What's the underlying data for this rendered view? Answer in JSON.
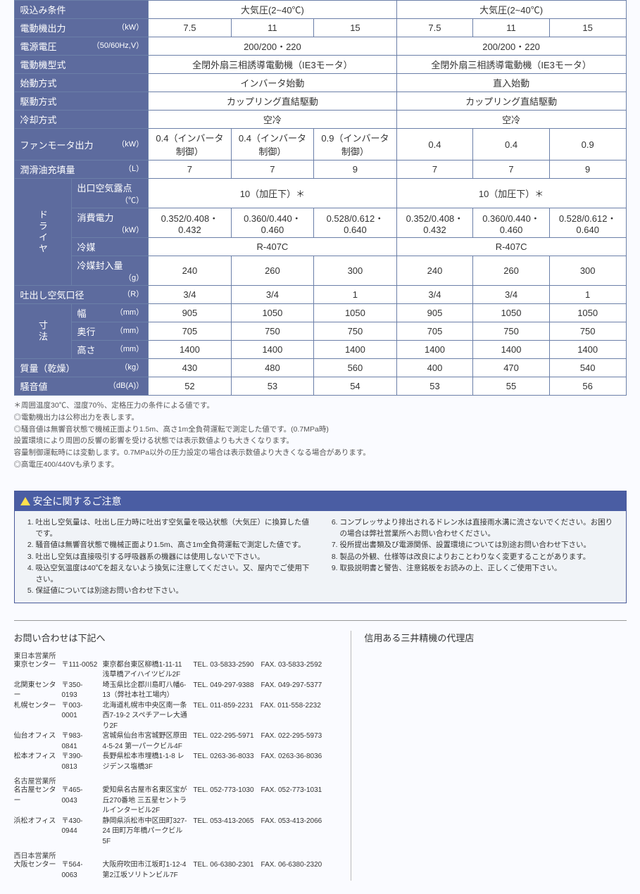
{
  "spec": [
    {
      "label": "吸込み条件",
      "unit": "",
      "cells": [
        "大気圧(2~40℃)",
        "",
        "",
        "大気圧(2~40℃)",
        "",
        ""
      ],
      "colspans": [
        3,
        0,
        0,
        3,
        0,
        0
      ]
    },
    {
      "label": "電動機出力",
      "unit": "（kW）",
      "cells": [
        "7.5",
        "11",
        "15",
        "7.5",
        "11",
        "15"
      ]
    },
    {
      "label": "電源電圧",
      "unit": "（50/60Hz,V）",
      "cells": [
        "200/200・220",
        "",
        "",
        "200/200・220",
        "",
        ""
      ],
      "colspans": [
        3,
        0,
        0,
        3,
        0,
        0
      ]
    },
    {
      "label": "電動機型式",
      "unit": "",
      "cells": [
        "全閉外扇三相誘導電動機（IE3モータ）",
        "",
        "",
        "全閉外扇三相誘導電動機（IE3モータ）",
        "",
        ""
      ],
      "colspans": [
        3,
        0,
        0,
        3,
        0,
        0
      ]
    },
    {
      "label": "始動方式",
      "unit": "",
      "cells": [
        "インバータ始動",
        "",
        "",
        "直入始動",
        "",
        ""
      ],
      "colspans": [
        3,
        0,
        0,
        3,
        0,
        0
      ]
    },
    {
      "label": "駆動方式",
      "unit": "",
      "cells": [
        "カップリング直結駆動",
        "",
        "",
        "カップリング直結駆動",
        "",
        ""
      ],
      "colspans": [
        3,
        0,
        0,
        3,
        0,
        0
      ]
    },
    {
      "label": "冷却方式",
      "unit": "",
      "cells": [
        "空冷",
        "",
        "",
        "空冷",
        "",
        ""
      ],
      "colspans": [
        3,
        0,
        0,
        3,
        0,
        0
      ]
    },
    {
      "label": "ファンモータ出力",
      "unit": "（kW）",
      "cells": [
        "0.4（インバータ制御）",
        "0.4（インバータ制御）",
        "0.9（インバータ制御）",
        "0.4",
        "0.4",
        "0.9"
      ]
    },
    {
      "label": "潤滑油充填量",
      "unit": "（L）",
      "cells": [
        "7",
        "7",
        "9",
        "7",
        "7",
        "9"
      ]
    },
    {
      "group": "ドライヤ",
      "label": "出口空気露点",
      "unit": "（℃）",
      "cells": [
        "10（加圧下）＊",
        "",
        "",
        "10（加圧下）＊",
        "",
        ""
      ],
      "colspans": [
        3,
        0,
        0,
        3,
        0,
        0
      ]
    },
    {
      "group": "ドライヤ",
      "label": "消費電力",
      "unit": "（kW）",
      "cells": [
        "0.352/0.408・0.432",
        "0.360/0.440・0.460",
        "0.528/0.612・0.640",
        "0.352/0.408・0.432",
        "0.360/0.440・0.460",
        "0.528/0.612・0.640"
      ]
    },
    {
      "group": "ドライヤ",
      "label": "冷媒",
      "unit": "",
      "cells": [
        "R-407C",
        "",
        "",
        "R-407C",
        "",
        ""
      ],
      "colspans": [
        3,
        0,
        0,
        3,
        0,
        0
      ]
    },
    {
      "group": "ドライヤ",
      "label": "冷媒封入量",
      "unit": "（g）",
      "cells": [
        "240",
        "260",
        "300",
        "240",
        "260",
        "300"
      ]
    },
    {
      "label": "吐出し空気口径",
      "unit": "（R）",
      "cells": [
        "3/4",
        "3/4",
        "1",
        "3/4",
        "3/4",
        "1"
      ]
    },
    {
      "group": "寸法",
      "label": "幅",
      "unit": "（mm）",
      "cells": [
        "905",
        "1050",
        "1050",
        "905",
        "1050",
        "1050"
      ]
    },
    {
      "group": "寸法",
      "label": "奥行",
      "unit": "（mm）",
      "cells": [
        "705",
        "750",
        "750",
        "705",
        "750",
        "750"
      ]
    },
    {
      "group": "寸法",
      "label": "高さ",
      "unit": "（mm）",
      "cells": [
        "1400",
        "1400",
        "1400",
        "1400",
        "1400",
        "1400"
      ]
    },
    {
      "label": "質量（乾燥）",
      "unit": "（kg）",
      "cells": [
        "430",
        "480",
        "560",
        "400",
        "470",
        "540"
      ]
    },
    {
      "label": "騒音値",
      "unit": "（dB(A)）",
      "cells": [
        "52",
        "53",
        "54",
        "53",
        "55",
        "56"
      ]
    }
  ],
  "groupSpans": {
    "ドライヤ": 4,
    "寸法": 3
  },
  "notes": [
    "＊周囲温度30℃、湿度70％、定格圧力の条件による値です。",
    "◎電動機出力は公称出力を表します。",
    "◎騒音値は無響音状態で機械正面より1.5m、高さ1m全負荷運転で測定した値です。(0.7MPa時)",
    "設置環境により周囲の反響の影響を受ける状態では表示数値よりも大きくなります。",
    "容量制御運転時には変動します。0.7MPa以外の圧力設定の場合は表示数値より大きくなる場合があります。",
    "◎高電圧400/440Vも承ります。"
  ],
  "safety": {
    "title": "安全に関するご注意",
    "left": [
      "吐出し空気量は、吐出し圧力時に吐出す空気量を吸込状態（大気圧）に換算した値です。",
      "騒音値は無響音状態で機械正面より1.5m、高さ1m全負荷運転で測定した値です。",
      "吐出し空気は直接吸引する呼吸器系の機器には使用しないで下さい。",
      "吸込空気温度は40℃を超えないよう換気に注意してください。又、屋内でご使用下さい。",
      "保証値については別途お問い合わせ下さい。"
    ],
    "right": [
      "コンプレッサより排出されるドレン水は直接雨水溝に流さないでください。お困りの場合は弊社営業所へお問い合わせください。",
      "役所提出書類及び電源関係、設置環境については別途お問い合わせ下さい。",
      "製品の外観、仕様等は改良によりおことわりなく変更することがあります。",
      "取扱説明書と警告、注意銘板をお読みの上、正しくご使用下さい。"
    ]
  },
  "contact": {
    "heading_left": "お問い合わせは下記へ",
    "heading_right": "信用ある三井精機の代理店",
    "groups": [
      {
        "name": "東日本営業所",
        "offices": [
          {
            "n": "東京センター",
            "z": "〒111-0052",
            "a": "東京都台東区柳橋1-11-11 浅草橋アイハイツビル2F",
            "t": "TEL. 03-5833-2590　FAX. 03-5833-2592"
          },
          {
            "n": "北関東センター",
            "z": "〒350-0193",
            "a": "埼玉県比企郡川島町八幡6-13（弊社本社工場内）",
            "t": "TEL. 049-297-9388　FAX. 049-297-5377"
          },
          {
            "n": "札幌センター",
            "z": "〒003-0001",
            "a": "北海道札幌市中央区南一条西7-19-2 スペチアーレ大通り2F",
            "t": "TEL. 011-859-2231　FAX. 011-558-2232"
          },
          {
            "n": "仙台オフィス",
            "z": "〒983-0841",
            "a": "宮城県仙台市宮城野区原田4-5-24 第一パークビル4F",
            "t": "TEL. 022-295-5971　FAX. 022-295-5973"
          },
          {
            "n": "松本オフィス",
            "z": "〒390-0813",
            "a": "長野県松本市埋橋1-1-8 レジデンス塩橋3F",
            "t": "TEL. 0263-36-8033　FAX. 0263-36-8036"
          }
        ]
      },
      {
        "name": "名古屋営業所",
        "offices": [
          {
            "n": "名古屋センター",
            "z": "〒465-0043",
            "a": "愛知県名古屋市名東区宝が丘270番地 三五星セントラルインタービル2F",
            "t": "TEL. 052-773-1030　FAX. 052-773-1031"
          },
          {
            "n": "浜松オフィス",
            "z": "〒430-0944",
            "a": "静岡県浜松市中区田町327-24 田町万年橋パークビル5F",
            "t": "TEL. 053-413-2065　FAX. 053-413-2066"
          }
        ]
      },
      {
        "name": "西日本営業所",
        "offices": [
          {
            "n": "大阪センター",
            "z": "〒564-0063",
            "a": "大阪府吹田市江坂町1-12-4 第2江坂ソリトンビル7F",
            "t": "TEL. 06-6380-2301　FAX. 06-6380-2320"
          }
        ]
      }
    ]
  }
}
